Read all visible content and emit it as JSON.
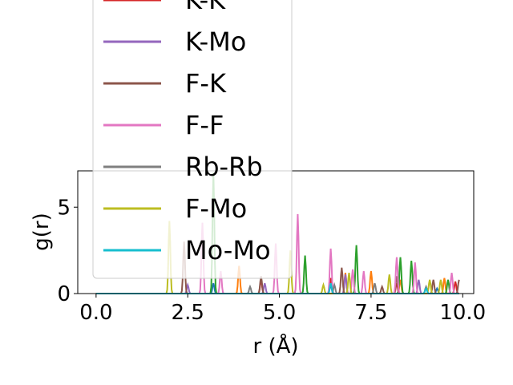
{
  "chart_data": {
    "type": "line",
    "xlabel": "r (Å)",
    "ylabel": "g(r)",
    "xlim": [
      -0.5,
      10.3
    ],
    "ylim": [
      0,
      7.1
    ],
    "xticks": [
      0.0,
      2.5,
      5.0,
      7.5,
      10.0
    ],
    "xtick_labels": [
      "0.0",
      "2.5",
      "5.0",
      "7.5",
      "10.0"
    ],
    "yticks": [
      0,
      5
    ],
    "ytick_labels": [
      "0",
      "5"
    ],
    "grid": false,
    "legend_position": "upper-left",
    "series": [
      {
        "name": "",
        "color": "#1f77b4",
        "peaks": [
          [
            3.2,
            0.6
          ],
          [
            6.4,
            0.5
          ],
          [
            9.3,
            0.3
          ]
        ]
      },
      {
        "name": "",
        "color": "#ff7f0e",
        "peaks": [
          [
            3.9,
            1.6
          ],
          [
            6.8,
            1.2
          ],
          [
            7.5,
            1.3
          ],
          [
            8.3,
            0.8
          ],
          [
            9.5,
            0.9
          ]
        ]
      },
      {
        "name": "",
        "color": "#2ca02c",
        "peaks": [
          [
            3.2,
            7.0
          ],
          [
            5.7,
            2.2
          ],
          [
            7.1,
            2.8
          ],
          [
            8.3,
            2.1
          ],
          [
            8.6,
            1.9
          ],
          [
            9.6,
            0.8
          ]
        ]
      },
      {
        "name": "K-K",
        "color": "#d62728",
        "peaks": [
          [
            4.5,
            0.8
          ],
          [
            6.4,
            0.9
          ],
          [
            8.2,
            0.6
          ],
          [
            9.8,
            0.7
          ]
        ]
      },
      {
        "name": "K-Mo",
        "color": "#9467bd",
        "peaks": [
          [
            2.5,
            0.5
          ],
          [
            4.6,
            0.6
          ],
          [
            6.8,
            1.1
          ],
          [
            8.8,
            0.8
          ]
        ]
      },
      {
        "name": "F-K",
        "color": "#8c564b",
        "peaks": [
          [
            2.4,
            3.0
          ],
          [
            4.5,
            1.0
          ],
          [
            6.7,
            1.5
          ],
          [
            7.8,
            0.4
          ],
          [
            8.2,
            1.0
          ],
          [
            9.2,
            0.8
          ],
          [
            9.9,
            0.8
          ]
        ]
      },
      {
        "name": "F-F",
        "color": "#e377c2",
        "peaks": [
          [
            2.9,
            4.1
          ],
          [
            3.4,
            1.3
          ],
          [
            4.9,
            2.9
          ],
          [
            5.5,
            4.6
          ],
          [
            6.4,
            2.6
          ],
          [
            7.0,
            1.4
          ],
          [
            7.3,
            1.3
          ],
          [
            8.2,
            2.1
          ],
          [
            8.7,
            1.8
          ],
          [
            9.7,
            1.2
          ]
        ]
      },
      {
        "name": "Rb-Rb",
        "color": "#7f7f7f",
        "peaks": [
          [
            4.2,
            0.4
          ],
          [
            6.5,
            0.5
          ],
          [
            7.6,
            0.6
          ],
          [
            9.0,
            0.4
          ]
        ]
      },
      {
        "name": "F-Mo",
        "color": "#bcbd22",
        "peaks": [
          [
            2.0,
            4.2
          ],
          [
            5.3,
            2.5
          ],
          [
            6.2,
            0.5
          ],
          [
            6.9,
            1.2
          ],
          [
            8.0,
            1.1
          ],
          [
            9.1,
            0.8
          ],
          [
            9.4,
            0.8
          ]
        ]
      },
      {
        "name": "Mo-Mo",
        "color": "#17becf",
        "peaks": [
          [
            6.4,
            0.6
          ],
          [
            9.0,
            0.3
          ]
        ]
      }
    ]
  }
}
